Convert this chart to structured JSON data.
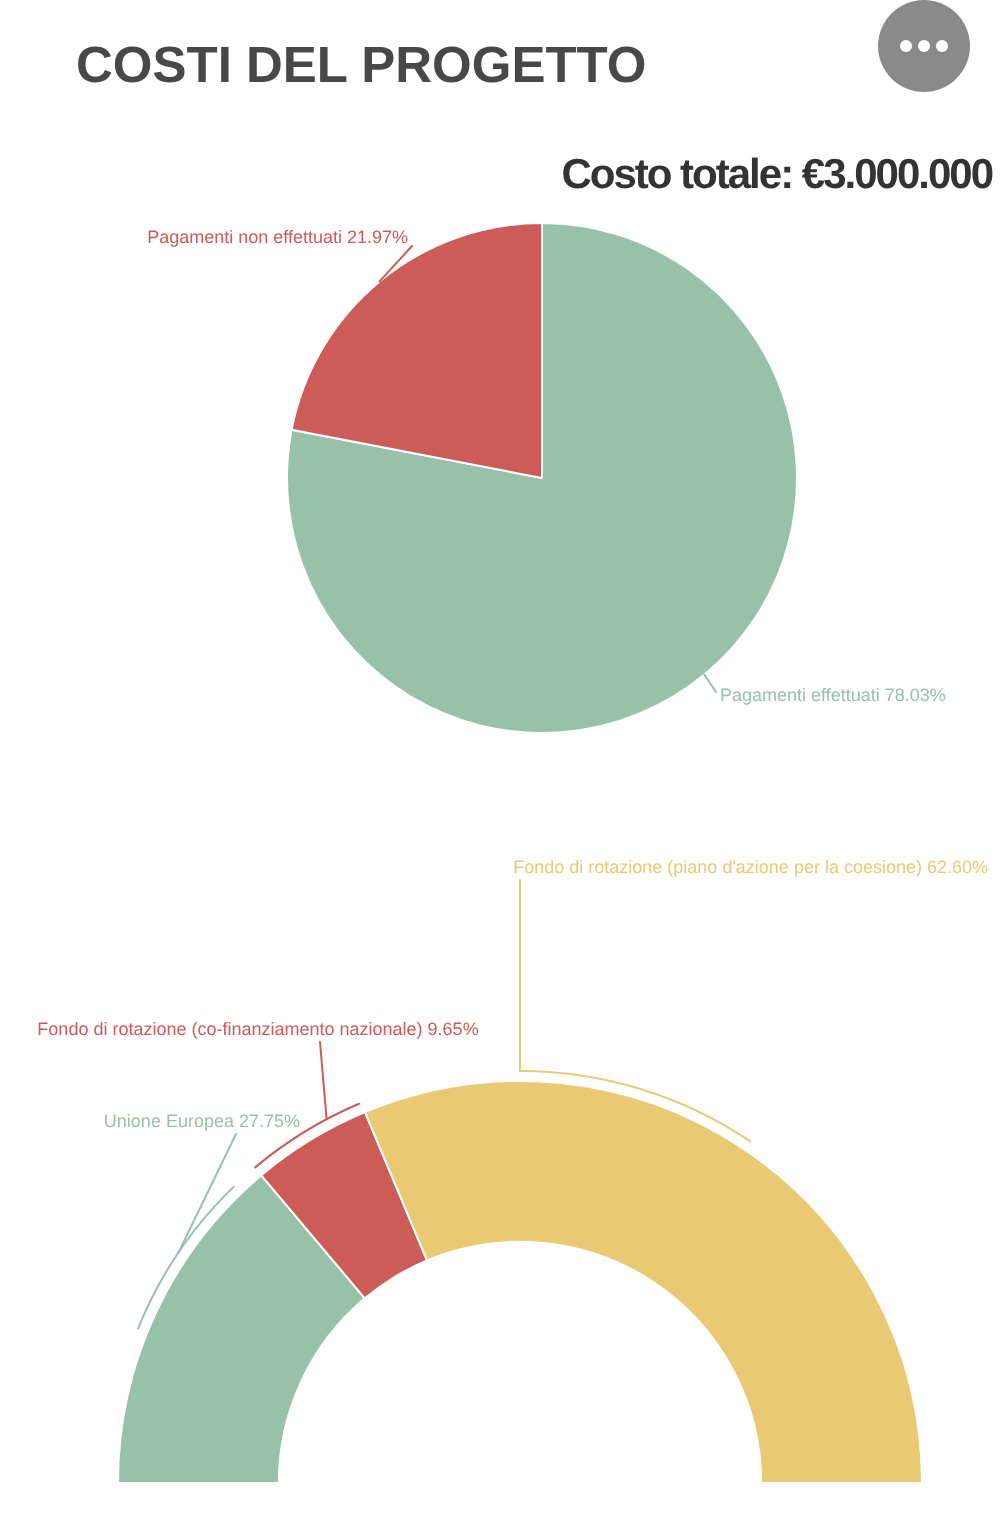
{
  "chart_data": [
    {
      "type": "pie",
      "title": "COSTI DEL PROGETTO",
      "subtitle": "Costo totale: €3.000.000",
      "categories": [
        "Pagamenti effettuati",
        "Pagamenti non effettuati"
      ],
      "values": [
        78.03,
        21.97
      ],
      "value_labels": [
        "78.03%",
        "21.97%"
      ],
      "colors": [
        "#97c1a9",
        "#cd5b57"
      ]
    },
    {
      "type": "donut",
      "categories": [
        "Unione Europea",
        "Fondo di rotazione (co-finanziamento nazionale)",
        "Fondo di rotazione (piano d'azione per la coesione)"
      ],
      "values": [
        27.75,
        9.65,
        62.6
      ],
      "value_labels": [
        "27.75%",
        "9.65%",
        "62.60%"
      ],
      "colors": [
        "#97c1a9",
        "#cd5b57",
        "#eac975"
      ]
    }
  ]
}
